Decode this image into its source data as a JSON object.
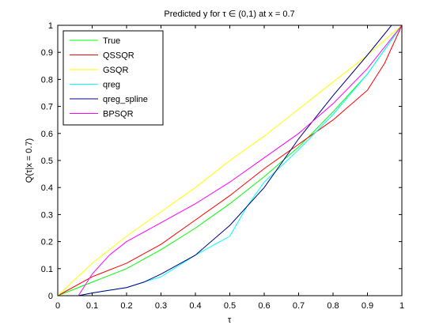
{
  "chart_data": {
    "type": "line",
    "title": "Predicted y for τ ∈ (0,1) at x = 0.7",
    "xlabel": "τ",
    "ylabel": "Q(τ|x = 0.7)",
    "xlim": [
      0,
      1
    ],
    "ylim": [
      0,
      1
    ],
    "xticks": [
      0,
      0.1,
      0.2,
      0.3,
      0.4,
      0.5,
      0.6,
      0.7,
      0.8,
      0.9,
      1
    ],
    "yticks": [
      0,
      0.1,
      0.2,
      0.3,
      0.4,
      0.5,
      0.6,
      0.7,
      0.8,
      0.9,
      1
    ],
    "xtick_labels": [
      "0",
      "0.1",
      "0.2",
      "0.3",
      "0.4",
      "0.5",
      "0.6",
      "0.7",
      "0.8",
      "0.9",
      "1"
    ],
    "ytick_labels": [
      "0",
      "0.1",
      "0.2",
      "0.3",
      "0.4",
      "0.5",
      "0.6",
      "0.7",
      "0.8",
      "0.9",
      "1"
    ],
    "grid": false,
    "legend_position": "top-left",
    "series": [
      {
        "name": "True",
        "color": "#00ff00",
        "x": [
          0,
          0.1,
          0.2,
          0.3,
          0.4,
          0.5,
          0.6,
          0.7,
          0.8,
          0.9,
          1
        ],
        "y": [
          0,
          0.05,
          0.1,
          0.17,
          0.25,
          0.34,
          0.44,
          0.55,
          0.68,
          0.82,
          1
        ]
      },
      {
        "name": "QSSQR",
        "color": "#ff0000",
        "x": [
          0,
          0.1,
          0.2,
          0.3,
          0.4,
          0.5,
          0.6,
          0.7,
          0.8,
          0.9,
          0.95,
          1
        ],
        "y": [
          0,
          0.07,
          0.12,
          0.19,
          0.28,
          0.37,
          0.47,
          0.56,
          0.65,
          0.76,
          0.86,
          1
        ]
      },
      {
        "name": "GSQR",
        "color": "#ffff00",
        "x": [
          0,
          0.1,
          0.2,
          0.3,
          0.4,
          0.5,
          0.6,
          0.7,
          0.8,
          0.9,
          1
        ],
        "y": [
          0,
          0.12,
          0.22,
          0.31,
          0.4,
          0.5,
          0.59,
          0.69,
          0.79,
          0.89,
          1
        ]
      },
      {
        "name": "qreg",
        "color": "#00ffff",
        "x": [
          0,
          0.06,
          0.1,
          0.2,
          0.3,
          0.4,
          0.5,
          0.55,
          0.6,
          0.7,
          0.8,
          0.9,
          0.95,
          1
        ],
        "y": [
          0,
          0,
          0.01,
          0.03,
          0.07,
          0.15,
          0.22,
          0.33,
          0.42,
          0.54,
          0.67,
          0.82,
          0.91,
          1
        ]
      },
      {
        "name": "qreg_spline",
        "color": "#000080",
        "x": [
          0.06,
          0.1,
          0.2,
          0.25,
          0.3,
          0.4,
          0.5,
          0.6,
          0.7,
          0.8,
          0.9,
          0.97,
          1
        ],
        "y": [
          0,
          0.01,
          0.03,
          0.05,
          0.08,
          0.15,
          0.26,
          0.4,
          0.58,
          0.74,
          0.89,
          1,
          1
        ]
      },
      {
        "name": "BPSQR",
        "color": "#ff00ff",
        "x": [
          0.06,
          0.1,
          0.15,
          0.2,
          0.3,
          0.4,
          0.5,
          0.6,
          0.7,
          0.8,
          0.9,
          1
        ],
        "y": [
          0,
          0.08,
          0.15,
          0.2,
          0.27,
          0.34,
          0.42,
          0.51,
          0.6,
          0.71,
          0.84,
          1
        ]
      }
    ]
  }
}
